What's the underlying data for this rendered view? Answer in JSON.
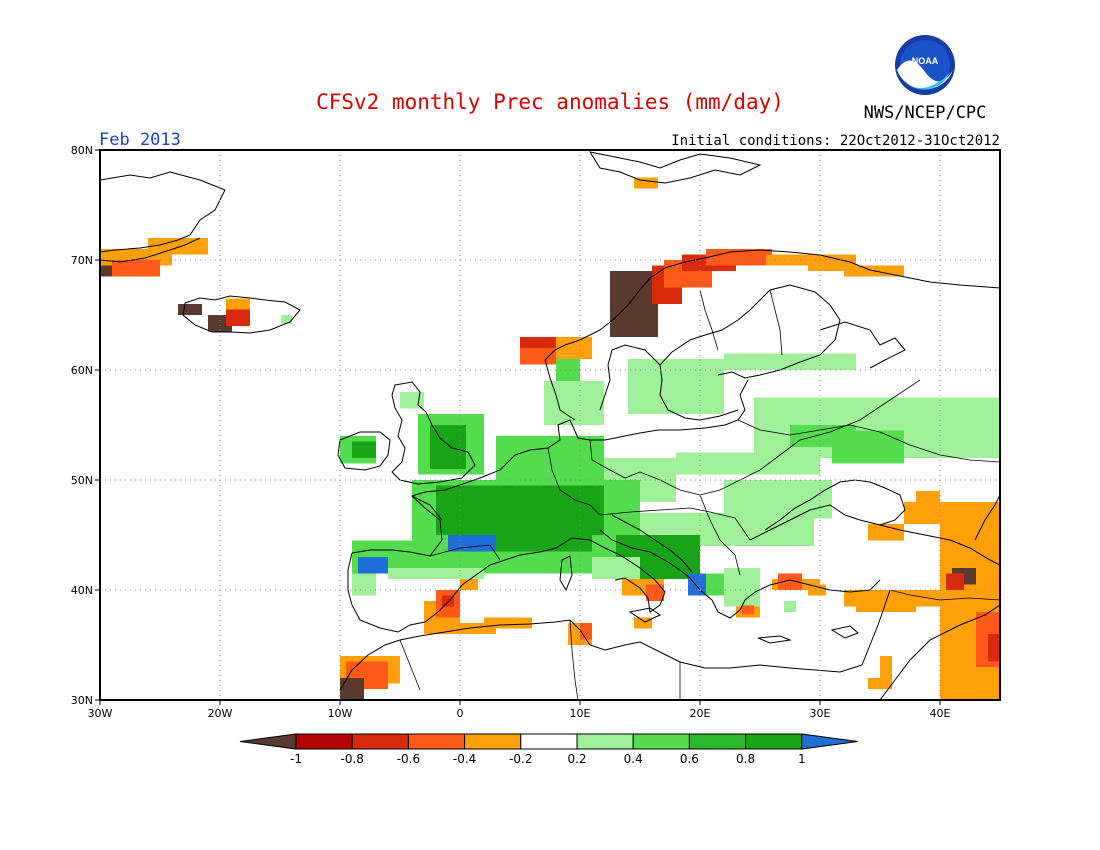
{
  "title": "CFSv2 monthly Prec anomalies (mm/day)",
  "period": "Feb 2013",
  "agency": "NWS/NCEP/CPC",
  "logo_text": "NOAA",
  "initial_conditions": "Initial conditions: 22Oct2012-31Oct2012",
  "colors": {
    "title": "#d40000",
    "period": "#1f3fcf",
    "frame": "#000000",
    "grid": "#888888",
    "coast": "#000000"
  },
  "chart_data": {
    "type": "heatmap",
    "map_extent": {
      "lon": [
        -30,
        45
      ],
      "lat": [
        30,
        80
      ]
    },
    "lon_ticks": [
      "30W",
      "20W",
      "10W",
      "0",
      "10E",
      "20E",
      "30E",
      "40E"
    ],
    "lat_ticks": [
      "30N",
      "40N",
      "50N",
      "60N",
      "70N",
      "80N"
    ],
    "lon_tick_values": [
      -30,
      -20,
      -10,
      0,
      10,
      20,
      30,
      40
    ],
    "lat_tick_values": [
      30,
      40,
      50,
      60,
      70,
      80
    ],
    "legend": {
      "labels": [
        "-1",
        "-0.8",
        "-0.6",
        "-0.4",
        "-0.2",
        "0.2",
        "0.4",
        "0.6",
        "0.8",
        "1"
      ],
      "colors": [
        "#5a3a2e",
        "#b30000",
        "#d92b0c",
        "#ff5a1a",
        "#ff9f0a",
        "#ffffff",
        "#a0f09a",
        "#52dc4e",
        "#2cb82c",
        "#17a517",
        "#1f6fd6"
      ]
    },
    "anomaly_regions": [
      {
        "level": "-1",
        "lon": [
          -30,
          -28.6
        ],
        "lat": [
          68.5,
          69.5
        ]
      },
      {
        "level": "-0.4",
        "lon": [
          -30,
          -24
        ],
        "lat": [
          69.5,
          71
        ]
      },
      {
        "level": "-0.4",
        "lon": [
          -26,
          -21
        ],
        "lat": [
          70.5,
          72
        ]
      },
      {
        "level": "-0.6",
        "lon": [
          -29,
          -25
        ],
        "lat": [
          68.5,
          70
        ]
      },
      {
        "level": "-1",
        "lon": [
          -23.5,
          -21.5
        ],
        "lat": [
          65,
          66
        ]
      },
      {
        "level": "-1",
        "lon": [
          -21,
          -19
        ],
        "lat": [
          63.5,
          65
        ]
      },
      {
        "level": "-0.8",
        "lon": [
          -19.5,
          -17.5
        ],
        "lat": [
          64,
          66
        ]
      },
      {
        "level": "-0.4",
        "lon": [
          -19.5,
          -17.5
        ],
        "lat": [
          65.5,
          66.5
        ]
      },
      {
        "level": "0.4",
        "lon": [
          -14.9,
          -14
        ],
        "lat": [
          64.2,
          65
        ]
      },
      {
        "level": "-0.4",
        "lon": [
          14.5,
          16.5
        ],
        "lat": [
          76.5,
          77.5
        ]
      },
      {
        "level": "-1",
        "lon": [
          12.5,
          16.5
        ],
        "lat": [
          63,
          69
        ]
      },
      {
        "level": "-0.8",
        "lon": [
          16,
          18.5
        ],
        "lat": [
          66,
          69.5
        ]
      },
      {
        "level": "-0.6",
        "lon": [
          17,
          21
        ],
        "lat": [
          67.5,
          70
        ]
      },
      {
        "level": "-0.8",
        "lon": [
          18.5,
          23
        ],
        "lat": [
          69,
          70.5
        ]
      },
      {
        "level": "-0.6",
        "lon": [
          20.5,
          26
        ],
        "lat": [
          69.5,
          71
        ]
      },
      {
        "level": "-0.4",
        "lon": [
          25.5,
          29
        ],
        "lat": [
          69.5,
          70.5
        ]
      },
      {
        "level": "-0.4",
        "lon": [
          29,
          33
        ],
        "lat": [
          69,
          70.5
        ]
      },
      {
        "level": "-0.4",
        "lon": [
          32,
          37
        ],
        "lat": [
          68.5,
          69.5
        ]
      },
      {
        "level": "-0.8",
        "lon": [
          5,
          9
        ],
        "lat": [
          61.5,
          63
        ]
      },
      {
        "level": "-0.6",
        "lon": [
          5,
          9
        ],
        "lat": [
          60.5,
          62
        ]
      },
      {
        "level": "-0.4",
        "lon": [
          8,
          11
        ],
        "lat": [
          61,
          63
        ]
      },
      {
        "level": "0.4",
        "lon": [
          14,
          22
        ],
        "lat": [
          56,
          61
        ]
      },
      {
        "level": "0.4",
        "lon": [
          22,
          33
        ],
        "lat": [
          60,
          61.5
        ]
      },
      {
        "level": "0.6",
        "lon": [
          8,
          10
        ],
        "lat": [
          59,
          61
        ]
      },
      {
        "level": "0.4",
        "lon": [
          7,
          12
        ],
        "lat": [
          55,
          59
        ]
      },
      {
        "level": "0.6",
        "lon": [
          -3.5,
          2
        ],
        "lat": [
          50.5,
          56
        ]
      },
      {
        "level": "0.8",
        "lon": [
          -2.5,
          0.5
        ],
        "lat": [
          51,
          55
        ]
      },
      {
        "level": "0.6",
        "lon": [
          -10,
          -7
        ],
        "lat": [
          51.5,
          54
        ]
      },
      {
        "level": "0.8",
        "lon": [
          -9,
          -7
        ],
        "lat": [
          52,
          53.5
        ]
      },
      {
        "level": "0.4",
        "lon": [
          -5,
          -3
        ],
        "lat": [
          56.5,
          58
        ]
      },
      {
        "level": "0.4",
        "lon": [
          24.5,
          45
        ],
        "lat": [
          52,
          57.5
        ]
      },
      {
        "level": "0.4",
        "lon": [
          18,
          30
        ],
        "lat": [
          50.5,
          52.5
        ]
      },
      {
        "level": "0.6",
        "lon": [
          27.5,
          33
        ],
        "lat": [
          53,
          55
        ]
      },
      {
        "level": "0.6",
        "lon": [
          31,
          37
        ],
        "lat": [
          51.5,
          54.5
        ]
      },
      {
        "level": "0.4",
        "lon": [
          22,
          31
        ],
        "lat": [
          46.5,
          50
        ]
      },
      {
        "level": "0.4",
        "lon": [
          24,
          29.5
        ],
        "lat": [
          44,
          47
        ]
      },
      {
        "level": "0.4",
        "lon": [
          12,
          18
        ],
        "lat": [
          48,
          52
        ]
      },
      {
        "level": "0.4",
        "lon": [
          13,
          24
        ],
        "lat": [
          44,
          47
        ]
      },
      {
        "level": "0.6",
        "lon": [
          -4,
          15
        ],
        "lat": [
          44.5,
          50
        ]
      },
      {
        "level": "0.6",
        "lon": [
          3,
          12
        ],
        "lat": [
          50,
          54
        ]
      },
      {
        "level": "0.8",
        "lon": [
          -2,
          12
        ],
        "lat": [
          45,
          49.5
        ]
      },
      {
        "level": "0.6",
        "lon": [
          -9,
          15
        ],
        "lat": [
          41.5,
          44.5
        ]
      },
      {
        "level": "0.8",
        "lon": [
          2,
          11
        ],
        "lat": [
          43.5,
          46
        ]
      },
      {
        "level": "0.8",
        "lon": [
          13,
          20
        ],
        "lat": [
          41,
          45
        ]
      },
      {
        "level": "1",
        "lon": [
          -1,
          3
        ],
        "lat": [
          43.5,
          45
        ]
      },
      {
        "level": "1",
        "lon": [
          -8.5,
          -6
        ],
        "lat": [
          41.5,
          43
        ]
      },
      {
        "level": "0.4",
        "lon": [
          -9,
          -7
        ],
        "lat": [
          39.5,
          41.5
        ]
      },
      {
        "level": "0.4",
        "lon": [
          -6,
          2
        ],
        "lat": [
          41,
          42
        ]
      },
      {
        "level": "0.4",
        "lon": [
          11,
          15
        ],
        "lat": [
          41,
          43
        ]
      },
      {
        "level": "1",
        "lon": [
          19,
          20.5
        ],
        "lat": [
          39.5,
          41.5
        ]
      },
      {
        "level": "0.6",
        "lon": [
          20.5,
          22.5
        ],
        "lat": [
          39.5,
          41.5
        ]
      },
      {
        "level": "0.4",
        "lon": [
          22,
          25
        ],
        "lat": [
          38.5,
          42
        ]
      },
      {
        "level": "0.4",
        "lon": [
          27,
          28
        ],
        "lat": [
          38,
          39
        ]
      },
      {
        "level": "-0.4",
        "lon": [
          13.5,
          17
        ],
        "lat": [
          39.5,
          41
        ]
      },
      {
        "level": "-0.6",
        "lon": [
          15.5,
          17
        ],
        "lat": [
          39,
          40.5
        ]
      },
      {
        "level": "-0.4",
        "lon": [
          14.5,
          16
        ],
        "lat": [
          36.5,
          37.5
        ]
      },
      {
        "level": "-0.4",
        "lon": [
          23,
          25
        ],
        "lat": [
          37.5,
          38.5
        ]
      },
      {
        "level": "-0.6",
        "lon": [
          23.5,
          24.5
        ],
        "lat": [
          37.8,
          38.6
        ]
      },
      {
        "level": "-0.4",
        "lon": [
          26,
          30
        ],
        "lat": [
          40,
          41
        ]
      },
      {
        "level": "-0.6",
        "lon": [
          26.5,
          28.5
        ],
        "lat": [
          40,
          41.5
        ]
      },
      {
        "level": "-0.4",
        "lon": [
          29,
          30.5
        ],
        "lat": [
          39.5,
          40.5
        ]
      },
      {
        "level": "-0.4",
        "lon": [
          34,
          37
        ],
        "lat": [
          44.5,
          46
        ]
      },
      {
        "level": "-0.4",
        "lon": [
          37,
          45
        ],
        "lat": [
          46,
          48
        ]
      },
      {
        "level": "-0.4",
        "lon": [
          38,
          40
        ],
        "lat": [
          48,
          49
        ]
      },
      {
        "level": "-0.4",
        "lon": [
          40,
          45
        ],
        "lat": [
          30,
          46
        ]
      },
      {
        "level": "-0.4",
        "lon": [
          32,
          45
        ],
        "lat": [
          38.5,
          40
        ]
      },
      {
        "level": "-0.4",
        "lon": [
          33,
          38
        ],
        "lat": [
          38,
          40
        ]
      },
      {
        "level": "-0.4",
        "lon": [
          35,
          36
        ],
        "lat": [
          32,
          34
        ]
      },
      {
        "level": "-0.4",
        "lon": [
          34,
          36
        ],
        "lat": [
          31,
          32
        ]
      },
      {
        "level": "-0.6",
        "lon": [
          43,
          45
        ],
        "lat": [
          33,
          38
        ]
      },
      {
        "level": "-0.8",
        "lon": [
          44,
          45
        ],
        "lat": [
          33.5,
          36
        ]
      },
      {
        "level": "-1",
        "lon": [
          41,
          43
        ],
        "lat": [
          40.5,
          42
        ]
      },
      {
        "level": "-0.8",
        "lon": [
          40.5,
          42
        ],
        "lat": [
          40,
          41.5
        ]
      },
      {
        "level": "-0.4",
        "lon": [
          -3,
          3
        ],
        "lat": [
          36,
          37
        ]
      },
      {
        "level": "-0.4",
        "lon": [
          2,
          6
        ],
        "lat": [
          36.5,
          37.5
        ]
      },
      {
        "level": "-0.4",
        "lon": [
          9,
          11
        ],
        "lat": [
          35,
          37
        ]
      },
      {
        "level": "-0.6",
        "lon": [
          10,
          11
        ],
        "lat": [
          35.5,
          37
        ]
      },
      {
        "level": "-0.4",
        "lon": [
          -3,
          0
        ],
        "lat": [
          37,
          39
        ]
      },
      {
        "level": "-0.6",
        "lon": [
          -2,
          0
        ],
        "lat": [
          37.5,
          40
        ]
      },
      {
        "level": "-0.8",
        "lon": [
          -1.5,
          -0.5
        ],
        "lat": [
          38.5,
          39.5
        ]
      },
      {
        "level": "-0.4",
        "lon": [
          0,
          1.5
        ],
        "lat": [
          40,
          41
        ]
      },
      {
        "level": "-0.4",
        "lon": [
          -10,
          -5
        ],
        "lat": [
          31.5,
          34
        ]
      },
      {
        "level": "-0.6",
        "lon": [
          -9.5,
          -6
        ],
        "lat": [
          31,
          33.5
        ]
      },
      {
        "level": "-1",
        "lon": [
          -10,
          -8
        ],
        "lat": [
          30,
          32
        ]
      }
    ]
  }
}
